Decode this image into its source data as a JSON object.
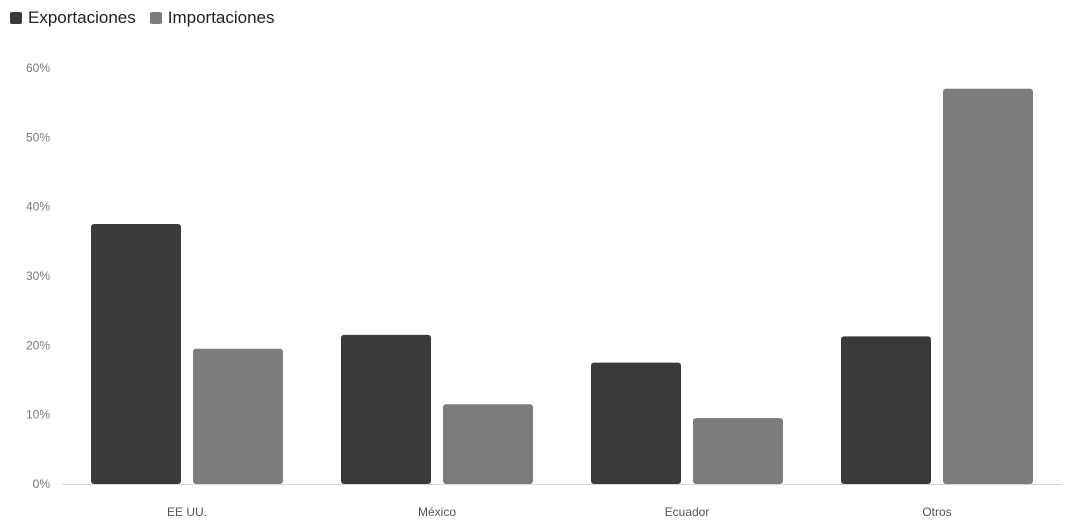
{
  "legend": {
    "exports_label": "Exportaciones",
    "imports_label": "Importaciones"
  },
  "colors": {
    "exports": "#3a3a3a",
    "imports": "#7c7c7c",
    "baseline": "#d8d8d8"
  },
  "chart_data": {
    "type": "bar",
    "categories": [
      "EE UU.",
      "México",
      "Ecuador",
      "Otros"
    ],
    "series": [
      {
        "name": "Exportaciones",
        "values": [
          37.5,
          21.5,
          17.5,
          21.3
        ]
      },
      {
        "name": "Importaciones",
        "values": [
          19.5,
          11.5,
          9.5,
          57.0
        ]
      }
    ],
    "ylim": [
      0,
      60
    ],
    "yticks": [
      "0%",
      "10%",
      "20%",
      "30%",
      "40%",
      "50%",
      "60%"
    ],
    "grid": false,
    "legend_position": "top-left"
  }
}
